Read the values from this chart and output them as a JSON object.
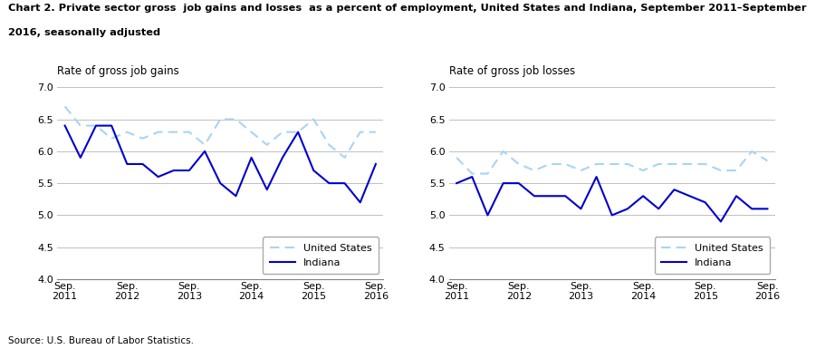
{
  "title_line1": "Chart 2. Private sector gross  job gains and losses  as a percent of employment, United States and Indiana, September 2011–September",
  "title_line2": "2016, seasonally adjusted",
  "left_subtitle": "Rate of gross job gains",
  "right_subtitle": "Rate of gross job losses",
  "source": "Source: U.S. Bureau of Labor Statistics.",
  "x_labels": [
    "Sep.\n2011",
    "Sep.\n2012",
    "Sep.\n2013",
    "Sep.\n2014",
    "Sep.\n2015",
    "Sep.\n2016"
  ],
  "x_positions": [
    0,
    4,
    8,
    12,
    16,
    20
  ],
  "ylim": [
    4.0,
    7.0
  ],
  "yticks": [
    4.0,
    4.5,
    5.0,
    5.5,
    6.0,
    6.5,
    7.0
  ],
  "gains_us": [
    6.7,
    6.4,
    6.4,
    6.2,
    6.3,
    6.2,
    6.3,
    6.3,
    6.3,
    6.1,
    6.5,
    6.5,
    6.3,
    6.1,
    6.3,
    6.3,
    6.5,
    6.1,
    5.9,
    6.3,
    6.3
  ],
  "gains_in": [
    6.4,
    5.9,
    6.4,
    6.4,
    5.8,
    5.8,
    5.6,
    5.7,
    5.7,
    6.0,
    5.5,
    5.3,
    5.9,
    5.4,
    5.9,
    6.3,
    5.7,
    5.5,
    5.5,
    5.2,
    5.8
  ],
  "losses_us": [
    5.9,
    5.65,
    5.65,
    6.0,
    5.8,
    5.7,
    5.8,
    5.8,
    5.7,
    5.8,
    5.8,
    5.8,
    5.7,
    5.8,
    5.8,
    5.8,
    5.8,
    5.7,
    5.7,
    6.0,
    5.85
  ],
  "losses_in": [
    5.5,
    5.6,
    5.0,
    5.5,
    5.5,
    5.3,
    5.3,
    5.3,
    5.1,
    5.6,
    5.0,
    5.1,
    5.3,
    5.1,
    5.4,
    5.3,
    5.2,
    4.9,
    5.3,
    5.1,
    5.1
  ],
  "us_color": "#a8d4f5",
  "in_color": "#0000cd",
  "background_color": "#ffffff",
  "grid_color": "#c0c0c0"
}
